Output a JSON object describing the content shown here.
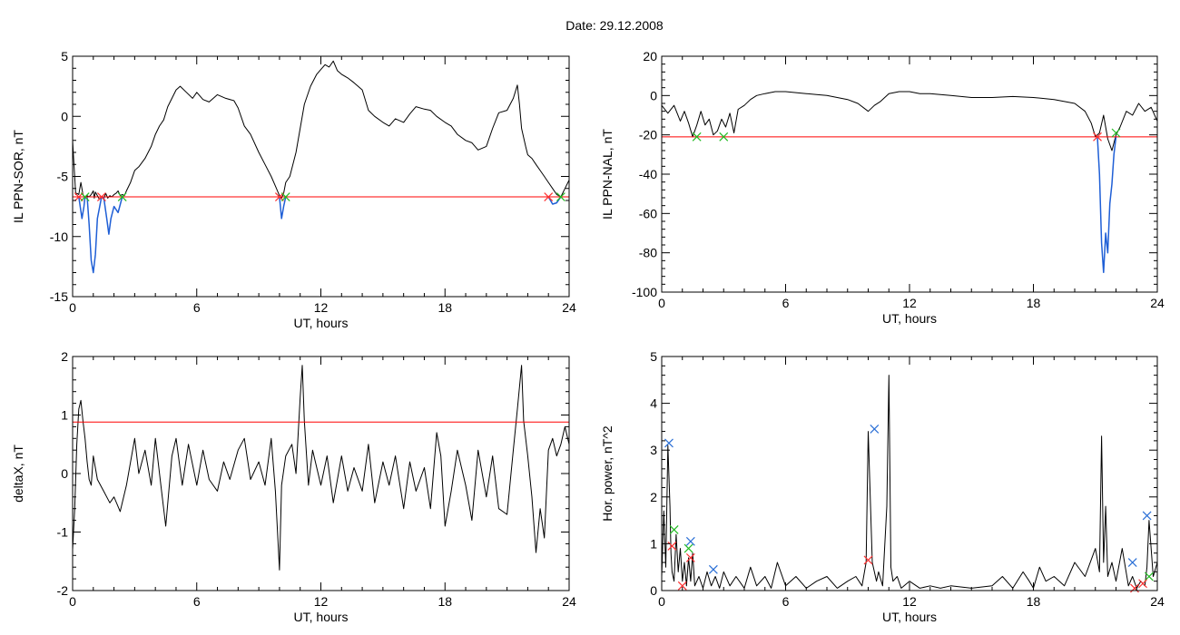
{
  "figure": {
    "title": "Date:  29.12.2008"
  },
  "chart_data": [
    {
      "type": "line",
      "id": "sor",
      "xlabel": "UT, hours",
      "ylabel": "IL PPN-SOR, nT",
      "xlim": [
        0,
        24
      ],
      "ylim": [
        -15,
        5
      ],
      "xticks": [
        0,
        6,
        12,
        18,
        24
      ],
      "yticks": [
        -15,
        -10,
        -5,
        0,
        5
      ],
      "threshold": -6.7,
      "threshold_color": "#ff0000",
      "series": [
        {
          "color": "#000000",
          "x": [
            0,
            0.05,
            0.1,
            0.15,
            0.2,
            0.3,
            0.4,
            0.5,
            0.6,
            0.7,
            0.8,
            0.9,
            1.0,
            1.05,
            1.1,
            1.2,
            1.3,
            1.4,
            1.5,
            1.6,
            1.7,
            1.8,
            1.9,
            2.0,
            2.1,
            2.2,
            2.3,
            2.4,
            2.5,
            2.6,
            2.8,
            3.0,
            3.2,
            3.5,
            3.8,
            4.0,
            4.2,
            4.4,
            4.6,
            4.8,
            5.0,
            5.2,
            5.5,
            5.8,
            6.0,
            6.3,
            6.6,
            7.0,
            7.4,
            7.8,
            8.0,
            8.3,
            8.6,
            9.0,
            9.3,
            9.6,
            9.8,
            10.0,
            10.1,
            10.2,
            10.3,
            10.5,
            10.8,
            11.0,
            11.2,
            11.5,
            11.8,
            12.0,
            12.2,
            12.4,
            12.6,
            12.8,
            13.0,
            13.3,
            13.6,
            14.0,
            14.3,
            14.6,
            15.0,
            15.3,
            15.6,
            16.0,
            16.3,
            16.6,
            17.0,
            17.3,
            17.6,
            18.0,
            18.3,
            18.6,
            19.0,
            19.3,
            19.6,
            20.0,
            20.3,
            20.6,
            21.0,
            21.3,
            21.5,
            21.6,
            21.7,
            21.9,
            22.0,
            22.2,
            22.4,
            22.6,
            22.8,
            23.0,
            23.2,
            23.4,
            23.6,
            23.8,
            24.0
          ],
          "y": [
            -2,
            -3.5,
            -5,
            -6.5,
            -6.4,
            -6.5,
            -5.5,
            -6.5,
            -6.8,
            -6.6,
            -6.7,
            -6.5,
            -6.2,
            -6.8,
            -6.3,
            -6.6,
            -6.9,
            -6.7,
            -6.9,
            -6.4,
            -6.8,
            -6.6,
            -6.7,
            -6.5,
            -6.4,
            -6.2,
            -6.6,
            -6.5,
            -6.6,
            -6.2,
            -5.5,
            -4.5,
            -4.2,
            -3.5,
            -2.5,
            -1.5,
            -0.8,
            -0.3,
            0.8,
            1.5,
            2.2,
            2.5,
            2.0,
            1.5,
            2.0,
            1.4,
            1.2,
            1.8,
            1.5,
            1.3,
            0.7,
            -0.8,
            -1.5,
            -3.0,
            -4.0,
            -5.0,
            -5.8,
            -6.6,
            -6.8,
            -6.4,
            -5.5,
            -5.0,
            -3.0,
            -1.0,
            1.0,
            2.5,
            3.5,
            3.9,
            4.3,
            4.1,
            4.6,
            3.8,
            3.5,
            3.2,
            2.8,
            2.2,
            0.5,
            0.0,
            -0.5,
            -0.8,
            -0.2,
            -0.5,
            0.2,
            0.8,
            0.6,
            0.5,
            0.0,
            -0.5,
            -0.8,
            -1.5,
            -2.0,
            -2.2,
            -2.8,
            -2.5,
            -1.0,
            0.3,
            0.5,
            1.5,
            2.6,
            1.0,
            -1.0,
            -2.5,
            -3.2,
            -3.5,
            -4.0,
            -4.5,
            -5.0,
            -5.5,
            -6.0,
            -6.5,
            -6.7,
            -6.0,
            -5.3
          ]
        },
        {
          "color": "#1f5fd6",
          "x": [
            0.3,
            0.45,
            0.55,
            0.6
          ],
          "y": [
            -6.7,
            -8.5,
            -7.5,
            -6.7
          ]
        },
        {
          "color": "#1f5fd6",
          "x": [
            0.7,
            0.8,
            0.9,
            1.0,
            1.1,
            1.2,
            1.4
          ],
          "y": [
            -6.7,
            -9.0,
            -12.0,
            -13.0,
            -11.5,
            -8.5,
            -6.7
          ]
        },
        {
          "color": "#1f5fd6",
          "x": [
            1.5,
            1.65,
            1.75,
            1.85,
            2.0,
            2.2,
            2.4
          ],
          "y": [
            -6.7,
            -8.5,
            -9.8,
            -8.5,
            -7.5,
            -8.0,
            -6.7
          ]
        },
        {
          "color": "#1f5fd6",
          "x": [
            10.0,
            10.1,
            10.2,
            10.3
          ],
          "y": [
            -6.7,
            -8.5,
            -7.5,
            -6.7
          ]
        },
        {
          "color": "#1f5fd6",
          "x": [
            23.0,
            23.2,
            23.4,
            23.6
          ],
          "y": [
            -6.7,
            -7.3,
            -7.2,
            -6.7
          ]
        }
      ],
      "markers": [
        {
          "color": "#ff3030",
          "x": [
            0.3,
            1.4,
            10.0,
            23.0
          ],
          "y": [
            -6.7,
            -6.7,
            -6.7,
            -6.7
          ]
        },
        {
          "color": "#22bb22",
          "x": [
            0.6,
            2.4,
            10.3,
            23.6
          ],
          "y": [
            -6.7,
            -6.7,
            -6.7,
            -6.7
          ]
        }
      ]
    },
    {
      "type": "line",
      "id": "nal",
      "xlabel": "UT, hours",
      "ylabel": "IL PPN-NAL, nT",
      "xlim": [
        0,
        24
      ],
      "ylim": [
        -100,
        20
      ],
      "xticks": [
        0,
        6,
        12,
        18,
        24
      ],
      "yticks": [
        -100,
        -80,
        -60,
        -40,
        -20,
        0,
        20
      ],
      "threshold": -21,
      "threshold_color": "#ff0000",
      "series": [
        {
          "color": "#000000",
          "x": [
            0,
            0.3,
            0.6,
            0.9,
            1.1,
            1.3,
            1.5,
            1.7,
            1.9,
            2.1,
            2.3,
            2.5,
            2.7,
            2.9,
            3.1,
            3.3,
            3.5,
            3.7,
            4.0,
            4.3,
            4.6,
            5.0,
            5.5,
            6.0,
            6.5,
            7.0,
            7.5,
            8.0,
            8.5,
            9.0,
            9.5,
            10.0,
            10.3,
            10.6,
            11.0,
            11.5,
            12.0,
            12.5,
            13.0,
            13.5,
            14.0,
            14.5,
            15.0,
            16.0,
            17.0,
            18.0,
            19.0,
            20.0,
            20.5,
            20.8,
            21.0,
            21.2,
            21.4,
            21.6,
            21.8,
            22.0,
            22.2,
            22.5,
            22.8,
            23.1,
            23.4,
            23.7,
            24.0
          ],
          "y": [
            -5,
            -9,
            -5,
            -13,
            -8,
            -14,
            -21,
            -15,
            -8,
            -15,
            -12,
            -20,
            -18,
            -12,
            -16,
            -9,
            -19,
            -7,
            -5,
            -2,
            0,
            1,
            2,
            2,
            1.5,
            1,
            0.5,
            0,
            -1,
            -2,
            -4,
            -8,
            -5,
            -3,
            1,
            2,
            2,
            1,
            1,
            0.5,
            0,
            -0.5,
            -1,
            -1,
            -0.5,
            -1,
            -2,
            -4,
            -8,
            -14,
            -21,
            -19,
            -10,
            -22,
            -28,
            -20,
            -16,
            -8,
            -10,
            -4,
            -8,
            -6,
            -13
          ]
        },
        {
          "color": "#1f5fd6",
          "x": [
            21.1,
            21.2,
            21.3,
            21.4,
            21.5,
            21.6,
            21.7,
            21.8,
            21.9,
            22.0
          ],
          "y": [
            -21,
            -40,
            -75,
            -90,
            -70,
            -80,
            -55,
            -45,
            -30,
            -21
          ]
        }
      ],
      "markers": [
        {
          "color": "#ff3030",
          "x": [
            21.1
          ],
          "y": [
            -21
          ]
        },
        {
          "color": "#22bb22",
          "x": [
            1.7,
            3.0,
            22.0
          ],
          "y": [
            -21,
            -21,
            -19
          ]
        }
      ]
    },
    {
      "type": "line",
      "id": "deltax",
      "xlabel": "UT, hours",
      "ylabel": "deltaX, nT",
      "xlim": [
        0,
        24
      ],
      "ylim": [
        -2,
        2
      ],
      "xticks": [
        0,
        6,
        12,
        18,
        24
      ],
      "yticks": [
        -2,
        -1,
        0,
        1,
        2
      ],
      "threshold": 0.88,
      "threshold_color": "#ff0000",
      "series": [
        {
          "color": "#000000",
          "x": [
            0,
            0.1,
            0.2,
            0.3,
            0.4,
            0.5,
            0.6,
            0.7,
            0.8,
            0.9,
            1.0,
            1.2,
            1.5,
            1.8,
            2.0,
            2.3,
            2.6,
            3.0,
            3.2,
            3.5,
            3.8,
            4.0,
            4.3,
            4.5,
            4.8,
            5.0,
            5.3,
            5.6,
            6.0,
            6.3,
            6.6,
            7.0,
            7.3,
            7.6,
            8.0,
            8.3,
            8.6,
            9.0,
            9.3,
            9.6,
            9.8,
            10.0,
            10.1,
            10.3,
            10.6,
            10.8,
            11.0,
            11.1,
            11.2,
            11.4,
            11.6,
            12.0,
            12.3,
            12.6,
            13.0,
            13.3,
            13.6,
            14.0,
            14.3,
            14.6,
            15.0,
            15.3,
            15.6,
            16.0,
            16.3,
            16.6,
            17.0,
            17.3,
            17.6,
            17.8,
            18.0,
            18.3,
            18.6,
            19.0,
            19.3,
            19.6,
            20.0,
            20.3,
            20.6,
            21.0,
            21.3,
            21.5,
            21.7,
            21.8,
            22.0,
            22.2,
            22.4,
            22.6,
            22.8,
            23.0,
            23.2,
            23.4,
            23.6,
            23.8,
            24.0
          ],
          "y": [
            -1.3,
            -0.6,
            0.5,
            1.1,
            1.25,
            0.9,
            0.6,
            0.2,
            -0.1,
            -0.2,
            0.3,
            -0.1,
            -0.3,
            -0.5,
            -0.4,
            -0.65,
            -0.2,
            0.6,
            0.0,
            0.4,
            -0.2,
            0.6,
            -0.3,
            -0.9,
            0.3,
            0.6,
            -0.2,
            0.5,
            -0.2,
            0.4,
            -0.1,
            -0.3,
            0.2,
            -0.1,
            0.4,
            0.6,
            -0.1,
            0.2,
            -0.2,
            0.6,
            -0.3,
            -1.65,
            -0.2,
            0.3,
            0.5,
            0.0,
            1.3,
            1.85,
            0.9,
            -0.2,
            0.4,
            -0.2,
            0.3,
            -0.5,
            0.3,
            -0.3,
            0.1,
            -0.3,
            0.5,
            -0.5,
            0.2,
            -0.2,
            0.3,
            -0.6,
            0.2,
            -0.3,
            0.1,
            -0.6,
            0.7,
            0.3,
            -0.9,
            -0.3,
            0.4,
            -0.2,
            -0.8,
            0.4,
            -0.4,
            0.3,
            -0.6,
            -0.7,
            0.4,
            1.1,
            1.85,
            0.9,
            0.3,
            -0.4,
            -1.35,
            -0.6,
            -1.1,
            0.4,
            0.6,
            0.3,
            0.5,
            0.8,
            0.5
          ]
        }
      ],
      "markers": []
    },
    {
      "type": "line",
      "id": "power",
      "xlabel": "UT, hours",
      "ylabel": "Hor. power, nT^2",
      "xlim": [
        0,
        24
      ],
      "ylim": [
        0,
        5
      ],
      "xticks": [
        0,
        6,
        12,
        18,
        24
      ],
      "yticks": [
        0,
        1,
        2,
        3,
        4,
        5
      ],
      "threshold": null,
      "series": [
        {
          "color": "#000000",
          "x": [
            0,
            0.1,
            0.2,
            0.3,
            0.4,
            0.45,
            0.5,
            0.6,
            0.7,
            0.8,
            0.9,
            1.0,
            1.1,
            1.2,
            1.3,
            1.4,
            1.5,
            1.6,
            1.8,
            2.0,
            2.2,
            2.4,
            2.6,
            2.8,
            3.0,
            3.3,
            3.6,
            4.0,
            4.3,
            4.6,
            5.0,
            5.3,
            5.6,
            6.0,
            6.5,
            7.0,
            7.5,
            8.0,
            8.5,
            9.0,
            9.4,
            9.7,
            9.9,
            10.0,
            10.2,
            10.4,
            10.5,
            10.7,
            10.9,
            11.0,
            11.1,
            11.2,
            11.4,
            11.6,
            12.0,
            12.5,
            13.0,
            13.5,
            14.0,
            15.0,
            16.0,
            16.5,
            17.0,
            17.5,
            17.8,
            18.0,
            18.3,
            18.6,
            19.0,
            19.5,
            20.0,
            20.5,
            21.0,
            21.2,
            21.3,
            21.4,
            21.5,
            21.6,
            21.8,
            22.0,
            22.3,
            22.6,
            22.8,
            23.0,
            23.2,
            23.4,
            23.5,
            23.6,
            23.8,
            24.0
          ],
          "y": [
            0.3,
            1.7,
            0.5,
            3.1,
            1.8,
            0.8,
            0.4,
            0.2,
            1.2,
            0.4,
            0.9,
            0.2,
            0.6,
            0.1,
            0.7,
            0.2,
            0.8,
            0.1,
            0.3,
            0.05,
            0.4,
            0.1,
            0.3,
            0.05,
            0.4,
            0.1,
            0.3,
            0.05,
            0.5,
            0.1,
            0.3,
            0.05,
            0.6,
            0.1,
            0.3,
            0.05,
            0.2,
            0.3,
            0.05,
            0.2,
            0.3,
            0.1,
            0.6,
            3.4,
            0.6,
            0.2,
            0.4,
            0.1,
            1.8,
            4.6,
            0.5,
            0.2,
            0.3,
            0.05,
            0.2,
            0.05,
            0.1,
            0.05,
            0.1,
            0.05,
            0.1,
            0.3,
            0.05,
            0.4,
            0.2,
            0.05,
            0.5,
            0.2,
            0.3,
            0.1,
            0.6,
            0.3,
            0.9,
            0.4,
            3.3,
            0.6,
            1.8,
            0.3,
            0.6,
            0.2,
            0.9,
            0.1,
            0.3,
            0.05,
            0.2,
            0.1,
            0.5,
            1.5,
            0.3,
            0.6
          ]
        }
      ],
      "markers": [
        {
          "color": "#2a6fd6",
          "x": [
            0.35,
            1.4,
            2.5,
            10.3,
            22.8,
            23.5
          ],
          "y": [
            3.15,
            1.05,
            0.45,
            3.45,
            0.6,
            1.6
          ]
        },
        {
          "color": "#22bb22",
          "x": [
            0.6,
            1.3,
            23.6
          ],
          "y": [
            1.3,
            0.9,
            0.3
          ]
        },
        {
          "color": "#ff3030",
          "x": [
            0.5,
            1.0,
            1.4,
            10.0,
            22.9,
            23.3
          ],
          "y": [
            0.95,
            0.1,
            0.7,
            0.65,
            0.05,
            0.15
          ]
        }
      ]
    }
  ]
}
